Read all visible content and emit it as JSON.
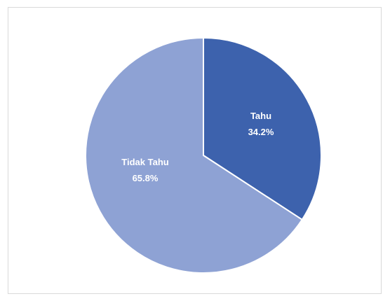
{
  "chart_data": {
    "type": "pie",
    "title": "",
    "categories": [
      "Tahu",
      "Tidak Tahu"
    ],
    "values": [
      34.2,
      65.8
    ],
    "value_labels": [
      "34.2%",
      "65.8%"
    ],
    "colors": [
      "#3d62ad",
      "#8ea2d4"
    ],
    "start_angle": "12 o'clock, clockwise",
    "legend": "none"
  }
}
